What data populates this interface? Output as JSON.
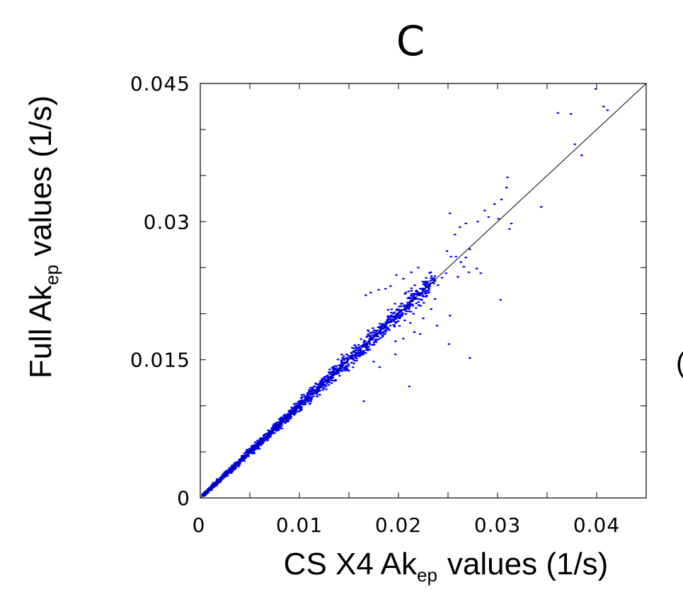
{
  "chart_data": {
    "type": "scatter",
    "title": "C",
    "xlabel": {
      "pre": "CS X4 Ak",
      "sub": "ep",
      "post": "values (1/s)"
    },
    "ylabel": {
      "pre": "Full Ak",
      "sub": "ep",
      "post": "values (1/s)"
    },
    "xlim": [
      0,
      0.045
    ],
    "ylim": [
      0,
      0.045
    ],
    "x_ticks": [
      {
        "value": 0,
        "label": "0"
      },
      {
        "value": 0.01,
        "label": "0.01"
      },
      {
        "value": 0.02,
        "label": "0.02"
      },
      {
        "value": 0.03,
        "label": "0.03"
      },
      {
        "value": 0.04,
        "label": "0.04"
      }
    ],
    "y_ticks": [
      {
        "value": 0,
        "label": "0"
      },
      {
        "value": 0.015,
        "label": "0.015"
      },
      {
        "value": 0.03,
        "label": "0.03"
      },
      {
        "value": 0.045,
        "label": "0.045"
      }
    ],
    "y_minor_ticks": [
      0.005,
      0.01,
      0.02,
      0.025,
      0.035,
      0.04
    ],
    "x_minor_ticks": [
      0.005,
      0.015,
      0.025,
      0.035
    ],
    "reference_line": {
      "from": [
        0,
        0
      ],
      "to": [
        0.045,
        0.045
      ]
    },
    "marker_color": "#0000ff",
    "grid": false,
    "points": [
      [
        0.0399,
        0.0444
      ],
      [
        0.0407,
        0.0425
      ],
      [
        0.0411,
        0.0421
      ],
      [
        0.0374,
        0.0417
      ],
      [
        0.0361,
        0.0418
      ],
      [
        0.0378,
        0.0384
      ],
      [
        0.0385,
        0.0372
      ],
      [
        0.0344,
        0.0316
      ],
      [
        0.031,
        0.0348
      ],
      [
        0.0309,
        0.0337
      ],
      [
        0.0304,
        0.0324
      ],
      [
        0.0297,
        0.0319
      ],
      [
        0.0301,
        0.0303
      ],
      [
        0.0314,
        0.0298
      ],
      [
        0.0312,
        0.0292
      ],
      [
        0.0291,
        0.0305
      ],
      [
        0.0287,
        0.0312
      ],
      [
        0.028,
        0.03
      ],
      [
        0.0268,
        0.0298
      ],
      [
        0.0262,
        0.0294
      ],
      [
        0.0257,
        0.0286
      ],
      [
        0.0252,
        0.0309
      ],
      [
        0.0303,
        0.0215
      ],
      [
        0.0272,
        0.0152
      ],
      [
        0.0251,
        0.0167
      ],
      [
        0.0211,
        0.0121
      ],
      [
        0.0165,
        0.0105
      ],
      [
        0.0272,
        0.027
      ],
      [
        0.0268,
        0.0261
      ],
      [
        0.0263,
        0.0256
      ],
      [
        0.0258,
        0.0262
      ],
      [
        0.0253,
        0.0262
      ],
      [
        0.0249,
        0.0268
      ],
      [
        0.0279,
        0.0249
      ],
      [
        0.0283,
        0.0244
      ],
      [
        0.0271,
        0.0245
      ],
      [
        0.0266,
        0.0251
      ],
      [
        0.026,
        0.024
      ],
      [
        0.0248,
        0.0244
      ],
      [
        0.0244,
        0.0239
      ],
      [
        0.024,
        0.0231
      ],
      [
        0.0236,
        0.0238
      ],
      [
        0.0229,
        0.0225
      ],
      [
        0.0226,
        0.0234
      ],
      [
        0.022,
        0.025
      ],
      [
        0.0213,
        0.0245
      ],
      [
        0.0205,
        0.0238
      ],
      [
        0.0198,
        0.0242
      ],
      [
        0.0192,
        0.023
      ],
      [
        0.0187,
        0.0227
      ],
      [
        0.018,
        0.0226
      ],
      [
        0.0172,
        0.0223
      ],
      [
        0.0167,
        0.022
      ],
      [
        0.0212,
        0.019
      ],
      [
        0.0216,
        0.018
      ],
      [
        0.0225,
        0.0195
      ],
      [
        0.0233,
        0.0205
      ],
      [
        0.0237,
        0.0216
      ],
      [
        0.0207,
        0.0205
      ],
      [
        0.0201,
        0.0195
      ],
      [
        0.0196,
        0.0186
      ],
      [
        0.0189,
        0.019
      ],
      [
        0.0184,
        0.0175
      ],
      [
        0.0205,
        0.0173
      ],
      [
        0.0197,
        0.017
      ],
      [
        0.0222,
        0.0178
      ],
      [
        0.0252,
        0.0198
      ],
      [
        0.0239,
        0.0187
      ],
      [
        0.0177,
        0.0171
      ],
      [
        0.0171,
        0.0161
      ],
      [
        0.0175,
        0.0148
      ],
      [
        0.0181,
        0.0142
      ],
      [
        0.0197,
        0.0156
      ],
      [
        0.0164,
        0.0157
      ]
    ],
    "trend_cloud": {
      "x_range": [
        0.0003,
        0.0235
      ],
      "slope": 1.0,
      "count": 1700,
      "seed": 7
    }
  },
  "stray_char": "("
}
